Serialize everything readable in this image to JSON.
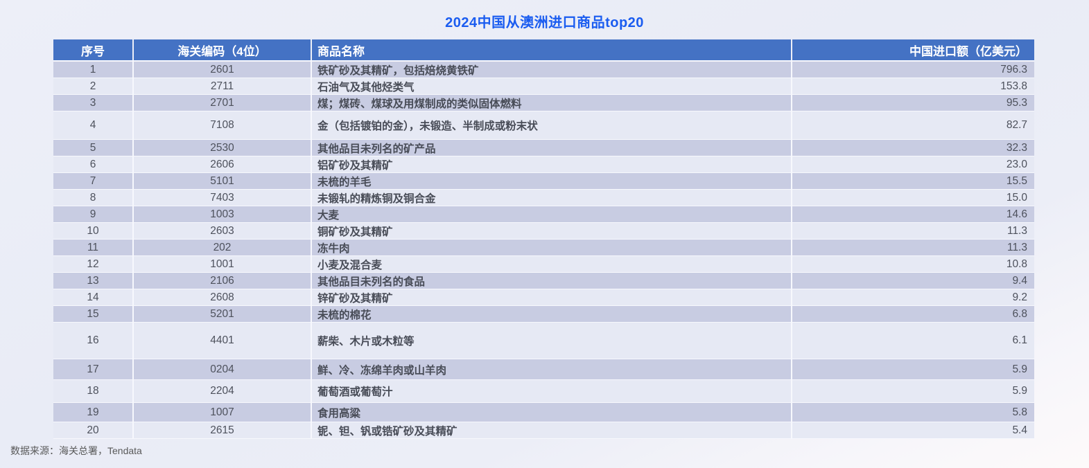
{
  "title": "2024中国从澳洲进口商品top20",
  "footer": {
    "source": "数据来源：海关总署，Tendata"
  },
  "colors": {
    "title": "#1a5cf0",
    "header_bg": "#4472c4",
    "header_text": "#ffffff",
    "row_dark": "#c8cce2",
    "row_light": "#e6e9f4",
    "cell_text": "#4d515c",
    "footer_text": "#595959"
  },
  "chart_data": {
    "type": "table",
    "title": "2024中国从澳洲进口商品top20",
    "columns": [
      "序号",
      "海关编码（4位）",
      "商品名称",
      "中国进口额（亿美元）"
    ],
    "rows": [
      [
        "1",
        "2601",
        "铁矿砂及其精矿，包括焙烧黄铁矿",
        "796.3"
      ],
      [
        "2",
        "2711",
        "石油气及其他烃类气",
        "153.8"
      ],
      [
        "3",
        "2701",
        "煤；煤砖、煤球及用煤制成的类似固体燃料",
        "95.3"
      ],
      [
        "4",
        "7108",
        "金（包括镀铂的金），未锻造、半制成或粉末状",
        "82.7"
      ],
      [
        "5",
        "2530",
        "其他品目未列名的矿产品",
        "32.3"
      ],
      [
        "6",
        "2606",
        "铝矿砂及其精矿",
        "23.0"
      ],
      [
        "7",
        "5101",
        "未梳的羊毛",
        "15.5"
      ],
      [
        "8",
        "7403",
        "未锻轧的精炼铜及铜合金",
        "15.0"
      ],
      [
        "9",
        "1003",
        "大麦",
        "14.6"
      ],
      [
        "10",
        "2603",
        "铜矿砂及其精矿",
        "11.3"
      ],
      [
        "11",
        "202",
        "冻牛肉",
        "11.3"
      ],
      [
        "12",
        "1001",
        "小麦及混合麦",
        "10.8"
      ],
      [
        "13",
        "2106",
        "其他品目未列名的食品",
        "9.4"
      ],
      [
        "14",
        "2608",
        "锌矿砂及其精矿",
        "9.2"
      ],
      [
        "15",
        "5201",
        "未梳的棉花",
        "6.8"
      ],
      [
        "16",
        "4401",
        "薪柴、木片或木粒等",
        "6.1"
      ],
      [
        "17",
        "0204",
        "鲜、冷、冻绵羊肉或山羊肉",
        "5.9"
      ],
      [
        "18",
        "2204",
        "葡萄酒或葡萄汁",
        "5.9"
      ],
      [
        "19",
        "1007",
        "食用高粱",
        "5.8"
      ],
      [
        "20",
        "2615",
        "铌、钽、钒或锆矿砂及其精矿",
        "5.4"
      ]
    ],
    "source": "数据来源：海关总署，Tendata",
    "layout_hints": {
      "stripe_pattern": "odd-rows-dark",
      "value_align": "right"
    }
  }
}
